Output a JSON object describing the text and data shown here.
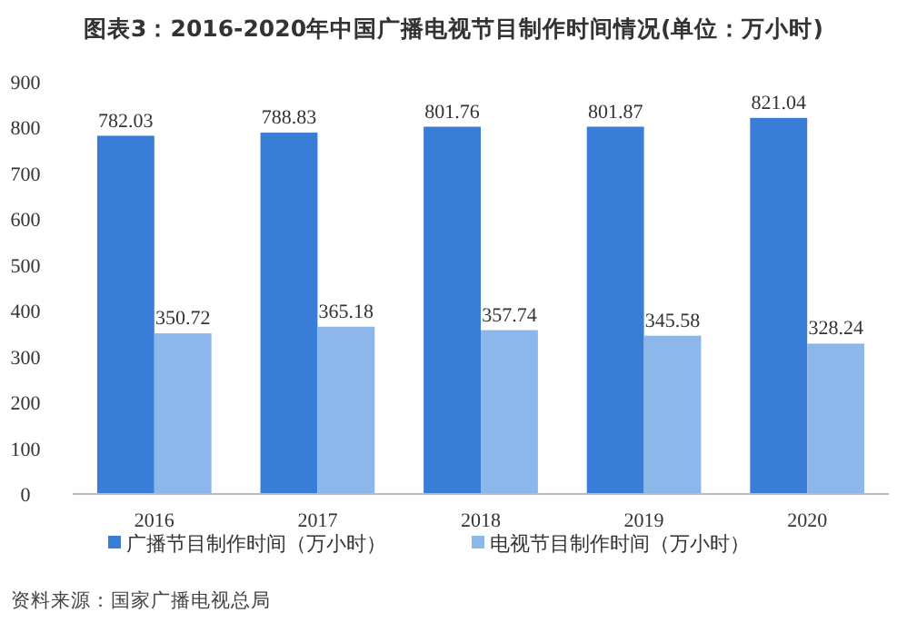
{
  "chart_data": {
    "type": "bar",
    "title": "图表3：2016-2020年中国广播电视节目制作时间情况(单位：万小时)",
    "categories": [
      "2016",
      "2017",
      "2018",
      "2019",
      "2020"
    ],
    "series": [
      {
        "name": "广播节目制作时间（万小时）",
        "color": "#3a7dd6",
        "values": [
          782.03,
          788.83,
          801.76,
          801.87,
          821.04
        ]
      },
      {
        "name": "电视节目制作时间（万小时）",
        "color": "#8db7ea",
        "values": [
          350.72,
          365.18,
          357.74,
          345.58,
          328.24
        ]
      }
    ],
    "ylim": [
      0,
      900
    ],
    "yticks": [
      0,
      100,
      200,
      300,
      400,
      500,
      600,
      700,
      800,
      900
    ],
    "grid": false,
    "legend": "bottom",
    "data_labels": true,
    "annotations": [
      "资料来源：国家广播电视总局"
    ]
  }
}
